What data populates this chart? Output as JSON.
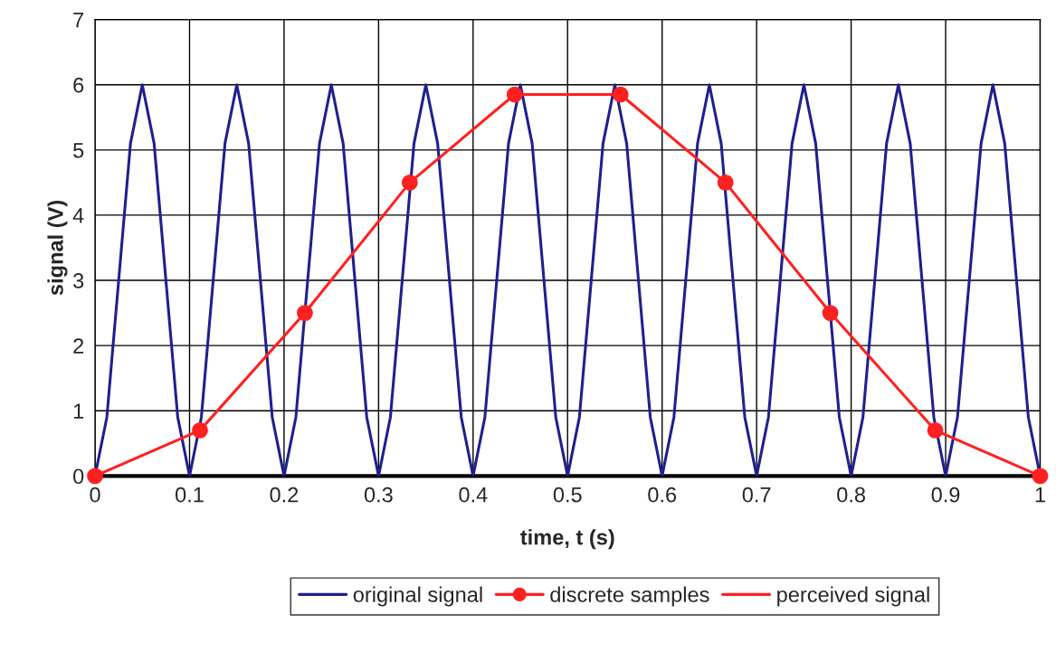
{
  "chart_data": {
    "type": "line",
    "xlabel": "time, t (s)",
    "ylabel": "signal (V)",
    "xlim": [
      0,
      1
    ],
    "ylim": [
      0,
      7
    ],
    "xticks": [
      0,
      0.1,
      0.2,
      0.3,
      0.4,
      0.5,
      0.6,
      0.7,
      0.8,
      0.9,
      1
    ],
    "yticks": [
      0,
      1,
      2,
      3,
      4,
      5,
      6,
      7
    ],
    "grid": true,
    "legend": "bottom",
    "series": [
      {
        "name": "original signal",
        "color": "#1f1f8f",
        "marker": "none",
        "x": [
          0,
          0.0125,
          0.025,
          0.0375,
          0.05,
          0.0625,
          0.075,
          0.0875,
          0.1,
          0.1125,
          0.125,
          0.1375,
          0.15,
          0.1625,
          0.175,
          0.1875,
          0.2,
          0.2125,
          0.225,
          0.2375,
          0.25,
          0.2625,
          0.275,
          0.2875,
          0.3,
          0.3125,
          0.325,
          0.3375,
          0.35,
          0.3625,
          0.375,
          0.3875,
          0.4,
          0.4125,
          0.425,
          0.4375,
          0.45,
          0.4625,
          0.475,
          0.4875,
          0.5,
          0.5125,
          0.525,
          0.5375,
          0.55,
          0.5625,
          0.575,
          0.5875,
          0.6,
          0.6125,
          0.625,
          0.6375,
          0.65,
          0.6625,
          0.675,
          0.6875,
          0.7,
          0.7125,
          0.725,
          0.7375,
          0.75,
          0.7625,
          0.775,
          0.7875,
          0.8,
          0.8125,
          0.825,
          0.8375,
          0.85,
          0.8625,
          0.875,
          0.8875,
          0.9,
          0.9125,
          0.925,
          0.9375,
          0.95,
          0.9625,
          0.975,
          0.9875,
          1
        ],
        "values": [
          0,
          0.9,
          3,
          5.1,
          6,
          5.1,
          3,
          0.9,
          0,
          0.9,
          3,
          5.1,
          6,
          5.1,
          3,
          0.9,
          0,
          0.9,
          3,
          5.1,
          6,
          5.1,
          3,
          0.9,
          0,
          0.9,
          3,
          5.1,
          6,
          5.1,
          3,
          0.9,
          0,
          0.9,
          3,
          5.1,
          6,
          5.1,
          3,
          0.9,
          0,
          0.9,
          3,
          5.1,
          6,
          5.1,
          3,
          0.9,
          0,
          0.9,
          3,
          5.1,
          6,
          5.1,
          3,
          0.9,
          0,
          0.9,
          3,
          5.1,
          6,
          5.1,
          3,
          0.9,
          0,
          0.9,
          3,
          5.1,
          6,
          5.1,
          3,
          0.9,
          0,
          0.9,
          3,
          5.1,
          6,
          5.1,
          3,
          0.9,
          0
        ]
      },
      {
        "name": "discrete samples",
        "color": "#ff2020",
        "type": "scatter",
        "marker": "circle",
        "x": [
          0,
          0.111,
          0.222,
          0.333,
          0.444,
          0.556,
          0.667,
          0.778,
          0.889,
          1
        ],
        "values": [
          0,
          0.7,
          2.5,
          4.5,
          5.85,
          5.85,
          4.5,
          2.5,
          0.7,
          0
        ]
      },
      {
        "name": "perceived signal",
        "color": "#ff2020",
        "marker": "none",
        "x": [
          0,
          0.111,
          0.222,
          0.333,
          0.444,
          0.556,
          0.667,
          0.778,
          0.889,
          1
        ],
        "values": [
          0,
          0.7,
          2.5,
          4.5,
          5.85,
          5.85,
          4.5,
          2.5,
          0.7,
          0
        ]
      }
    ]
  }
}
